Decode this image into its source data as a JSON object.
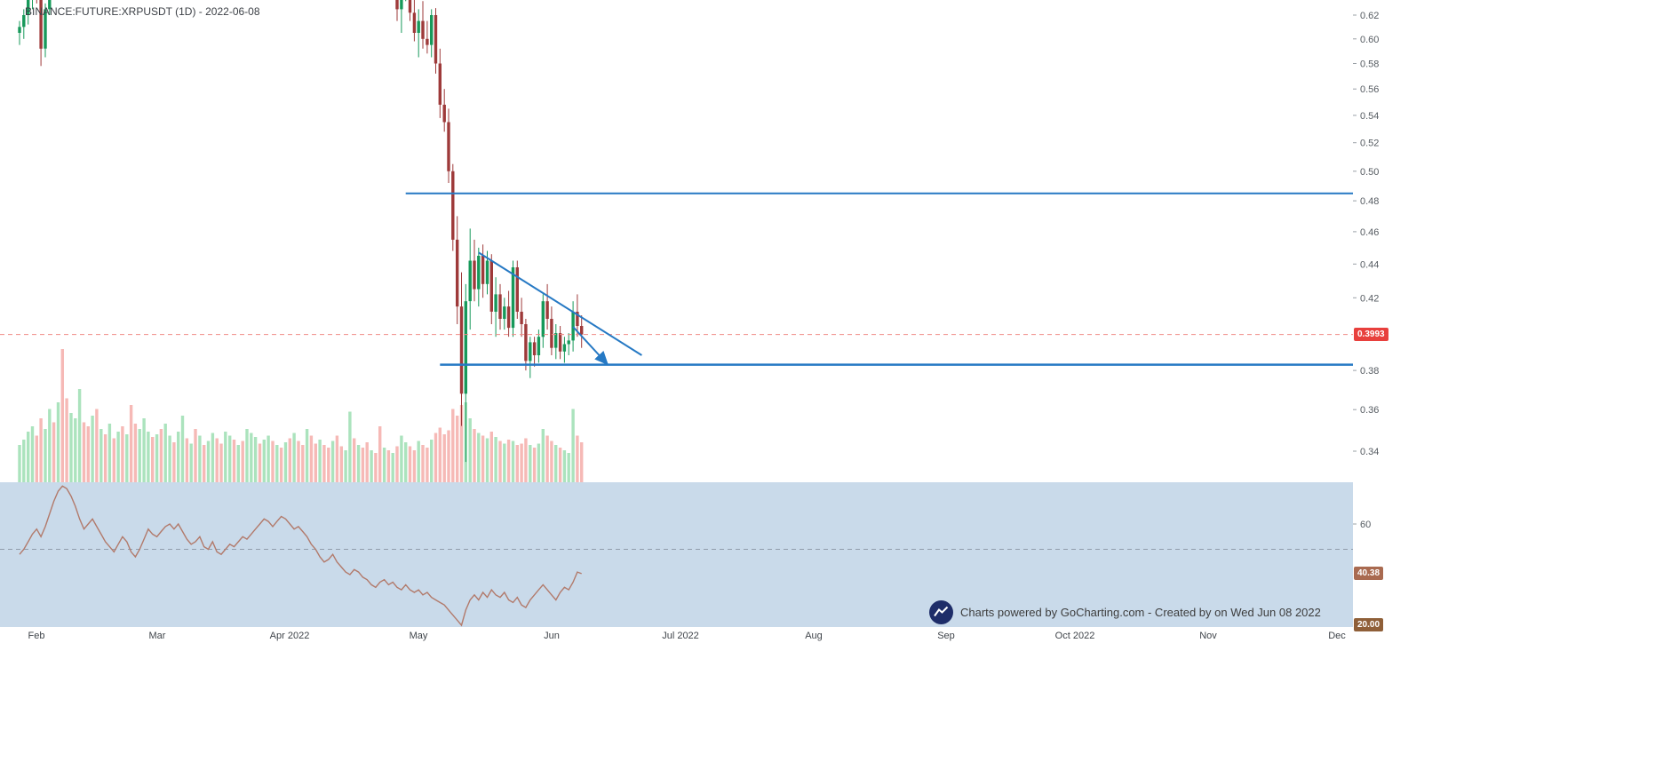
{
  "header": {
    "title": "BINANCE:FUTURE:XRPUSDT (1D) - 2022-06-08"
  },
  "footer": {
    "watermark_text": "Charts powered by GoCharting.com - Created by  on Wed Jun 08 2022"
  },
  "chart_data": {
    "type": "candlestick",
    "title": "BINANCE:FUTURE:XRPUSDT (1D) - 2022-06-08",
    "y_scale": "log",
    "price_ylim": [
      0.326,
      0.633
    ],
    "time_range": [
      "2022-01-28",
      "2022-12-04"
    ],
    "grid": "off",
    "price_ticks": [
      0.62,
      0.6,
      0.58,
      0.56,
      0.54,
      0.52,
      0.5,
      0.48,
      0.46,
      0.44,
      0.42,
      0.38,
      0.36,
      0.34
    ],
    "month_labels": [
      {
        "text": "Feb",
        "date": "2022-02-01"
      },
      {
        "text": "Mar",
        "date": "2022-03-01"
      },
      {
        "text": "Apr 2022",
        "date": "2022-04-01"
      },
      {
        "text": "May",
        "date": "2022-05-01"
      },
      {
        "text": "Jun",
        "date": "2022-06-01"
      },
      {
        "text": "Jul 2022",
        "date": "2022-07-01"
      },
      {
        "text": "Aug",
        "date": "2022-08-01"
      },
      {
        "text": "Sep",
        "date": "2022-09-01"
      },
      {
        "text": "Oct 2022",
        "date": "2022-10-01"
      },
      {
        "text": "Nov",
        "date": "2022-11-01"
      },
      {
        "text": "Dec",
        "date": "2022-12-01"
      }
    ],
    "candles_columns": [
      "date",
      "open",
      "high",
      "low",
      "close"
    ],
    "candles": [
      [
        "2022-01-28",
        0.605,
        0.615,
        0.595,
        0.61
      ],
      [
        "2022-01-29",
        0.61,
        0.625,
        0.6,
        0.62
      ],
      [
        "2022-01-30",
        0.62,
        0.64,
        0.612,
        0.635
      ],
      [
        "2022-01-31",
        0.635,
        0.655,
        0.625,
        0.65
      ],
      [
        "2022-02-01",
        0.65,
        0.662,
        0.63,
        0.638
      ],
      [
        "2022-02-02",
        0.638,
        0.645,
        0.578,
        0.592
      ],
      [
        "2022-02-03",
        0.592,
        0.63,
        0.585,
        0.625
      ],
      [
        "2022-02-04",
        0.625,
        0.668,
        0.62,
        0.66
      ],
      [
        "2022-02-05",
        0.66,
        0.672,
        0.645,
        0.652
      ],
      [
        "2022-02-06",
        0.652,
        0.68,
        0.648,
        0.675
      ],
      [
        "2022-04-26",
        0.655,
        0.66,
        0.615,
        0.625
      ],
      [
        "2022-04-27",
        0.625,
        0.652,
        0.605,
        0.645
      ],
      [
        "2022-04-28",
        0.645,
        0.662,
        0.632,
        0.655
      ],
      [
        "2022-04-29",
        0.655,
        0.665,
        0.615,
        0.622
      ],
      [
        "2022-04-30",
        0.622,
        0.635,
        0.598,
        0.605
      ],
      [
        "2022-05-01",
        0.605,
        0.625,
        0.585,
        0.615
      ],
      [
        "2022-05-02",
        0.615,
        0.632,
        0.592,
        0.6
      ],
      [
        "2022-05-03",
        0.6,
        0.615,
        0.588,
        0.595
      ],
      [
        "2022-05-04",
        0.595,
        0.625,
        0.585,
        0.62
      ],
      [
        "2022-05-05",
        0.62,
        0.626,
        0.572,
        0.58
      ],
      [
        "2022-05-06",
        0.58,
        0.592,
        0.538,
        0.548
      ],
      [
        "2022-05-07",
        0.548,
        0.56,
        0.528,
        0.535
      ],
      [
        "2022-05-08",
        0.535,
        0.545,
        0.492,
        0.5
      ],
      [
        "2022-05-09",
        0.5,
        0.505,
        0.448,
        0.455
      ],
      [
        "2022-05-10",
        0.455,
        0.47,
        0.405,
        0.415
      ],
      [
        "2022-05-11",
        0.415,
        0.435,
        0.352,
        0.368
      ],
      [
        "2022-05-12",
        0.368,
        0.428,
        0.335,
        0.418
      ],
      [
        "2022-05-13",
        0.418,
        0.462,
        0.402,
        0.442
      ],
      [
        "2022-05-14",
        0.442,
        0.455,
        0.418,
        0.425
      ],
      [
        "2022-05-15",
        0.425,
        0.45,
        0.415,
        0.445
      ],
      [
        "2022-05-16",
        0.445,
        0.452,
        0.42,
        0.428
      ],
      [
        "2022-05-17",
        0.428,
        0.448,
        0.422,
        0.442
      ],
      [
        "2022-05-18",
        0.442,
        0.446,
        0.405,
        0.412
      ],
      [
        "2022-05-19",
        0.412,
        0.432,
        0.398,
        0.422
      ],
      [
        "2022-05-20",
        0.422,
        0.428,
        0.402,
        0.408
      ],
      [
        "2022-05-21",
        0.408,
        0.42,
        0.402,
        0.415
      ],
      [
        "2022-05-22",
        0.415,
        0.424,
        0.398,
        0.403
      ],
      [
        "2022-05-23",
        0.403,
        0.442,
        0.398,
        0.438
      ],
      [
        "2022-05-24",
        0.438,
        0.442,
        0.408,
        0.412
      ],
      [
        "2022-05-25",
        0.412,
        0.42,
        0.398,
        0.405
      ],
      [
        "2022-05-26",
        0.405,
        0.408,
        0.38,
        0.385
      ],
      [
        "2022-05-27",
        0.385,
        0.398,
        0.376,
        0.395
      ],
      [
        "2022-05-28",
        0.395,
        0.398,
        0.382,
        0.388
      ],
      [
        "2022-05-29",
        0.388,
        0.402,
        0.384,
        0.398
      ],
      [
        "2022-05-30",
        0.398,
        0.422,
        0.392,
        0.418
      ],
      [
        "2022-05-31",
        0.418,
        0.428,
        0.402,
        0.408
      ],
      [
        "2022-06-01",
        0.408,
        0.415,
        0.388,
        0.392
      ],
      [
        "2022-06-02",
        0.392,
        0.405,
        0.386,
        0.4
      ],
      [
        "2022-06-03",
        0.4,
        0.404,
        0.386,
        0.39
      ],
      [
        "2022-06-04",
        0.39,
        0.398,
        0.384,
        0.394
      ],
      [
        "2022-06-05",
        0.394,
        0.4,
        0.388,
        0.396
      ],
      [
        "2022-06-06",
        0.396,
        0.418,
        0.39,
        0.412
      ],
      [
        "2022-06-07",
        0.412,
        0.422,
        0.398,
        0.404
      ],
      [
        "2022-06-08",
        0.404,
        0.41,
        0.392,
        0.3993
      ]
    ],
    "volume": {
      "start": "2022-01-28",
      "unit": "relative",
      "bars": [
        [
          28,
          "u"
        ],
        [
          32,
          "u"
        ],
        [
          38,
          "u"
        ],
        [
          42,
          "u"
        ],
        [
          35,
          "d"
        ],
        [
          48,
          "d"
        ],
        [
          40,
          "u"
        ],
        [
          55,
          "u"
        ],
        [
          45,
          "d"
        ],
        [
          60,
          "u"
        ],
        [
          100,
          "d"
        ],
        [
          63,
          "d"
        ],
        [
          52,
          "u"
        ],
        [
          48,
          "u"
        ],
        [
          70,
          "u"
        ],
        [
          45,
          "d"
        ],
        [
          42,
          "d"
        ],
        [
          50,
          "u"
        ],
        [
          55,
          "d"
        ],
        [
          40,
          "u"
        ],
        [
          36,
          "d"
        ],
        [
          44,
          "u"
        ],
        [
          33,
          "d"
        ],
        [
          38,
          "u"
        ],
        [
          42,
          "d"
        ],
        [
          36,
          "u"
        ],
        [
          58,
          "d"
        ],
        [
          44,
          "d"
        ],
        [
          40,
          "u"
        ],
        [
          48,
          "u"
        ],
        [
          38,
          "u"
        ],
        [
          34,
          "d"
        ],
        [
          36,
          "u"
        ],
        [
          40,
          "d"
        ],
        [
          44,
          "u"
        ],
        [
          35,
          "u"
        ],
        [
          30,
          "d"
        ],
        [
          38,
          "u"
        ],
        [
          50,
          "u"
        ],
        [
          33,
          "d"
        ],
        [
          29,
          "u"
        ],
        [
          40,
          "d"
        ],
        [
          35,
          "u"
        ],
        [
          28,
          "d"
        ],
        [
          31,
          "u"
        ],
        [
          37,
          "u"
        ],
        [
          33,
          "d"
        ],
        [
          29,
          "d"
        ],
        [
          38,
          "u"
        ],
        [
          35,
          "u"
        ],
        [
          32,
          "d"
        ],
        [
          28,
          "u"
        ],
        [
          31,
          "d"
        ],
        [
          40,
          "u"
        ],
        [
          37,
          "u"
        ],
        [
          34,
          "u"
        ],
        [
          29,
          "d"
        ],
        [
          32,
          "u"
        ],
        [
          35,
          "u"
        ],
        [
          31,
          "d"
        ],
        [
          28,
          "u"
        ],
        [
          26,
          "d"
        ],
        [
          30,
          "u"
        ],
        [
          33,
          "d"
        ],
        [
          37,
          "u"
        ],
        [
          31,
          "d"
        ],
        [
          28,
          "d"
        ],
        [
          40,
          "u"
        ],
        [
          35,
          "d"
        ],
        [
          29,
          "d"
        ],
        [
          32,
          "u"
        ],
        [
          28,
          "d"
        ],
        [
          26,
          "d"
        ],
        [
          31,
          "u"
        ],
        [
          35,
          "d"
        ],
        [
          27,
          "d"
        ],
        [
          24,
          "u"
        ],
        [
          53,
          "u"
        ],
        [
          33,
          "d"
        ],
        [
          28,
          "u"
        ],
        [
          26,
          "d"
        ],
        [
          30,
          "d"
        ],
        [
          24,
          "u"
        ],
        [
          22,
          "d"
        ],
        [
          42,
          "d"
        ],
        [
          26,
          "u"
        ],
        [
          24,
          "d"
        ],
        [
          22,
          "u"
        ],
        [
          27,
          "d"
        ],
        [
          35,
          "u"
        ],
        [
          30,
          "u"
        ],
        [
          27,
          "d"
        ],
        [
          24,
          "d"
        ],
        [
          31,
          "u"
        ],
        [
          28,
          "d"
        ],
        [
          26,
          "d"
        ],
        [
          32,
          "u"
        ],
        [
          37,
          "d"
        ],
        [
          41,
          "d"
        ],
        [
          36,
          "d"
        ],
        [
          39,
          "d"
        ],
        [
          55,
          "d"
        ],
        [
          50,
          "d"
        ],
        [
          58,
          "d"
        ],
        [
          60,
          "u"
        ],
        [
          48,
          "u"
        ],
        [
          40,
          "d"
        ],
        [
          37,
          "u"
        ],
        [
          35,
          "d"
        ],
        [
          33,
          "u"
        ],
        [
          38,
          "d"
        ],
        [
          34,
          "u"
        ],
        [
          31,
          "d"
        ],
        [
          29,
          "u"
        ],
        [
          32,
          "d"
        ],
        [
          31,
          "u"
        ],
        [
          28,
          "d"
        ],
        [
          29,
          "d"
        ],
        [
          33,
          "d"
        ],
        [
          28,
          "u"
        ],
        [
          26,
          "d"
        ],
        [
          29,
          "u"
        ],
        [
          40,
          "u"
        ],
        [
          35,
          "d"
        ],
        [
          31,
          "d"
        ],
        [
          28,
          "u"
        ],
        [
          26,
          "d"
        ],
        [
          24,
          "u"
        ],
        [
          22,
          "u"
        ],
        [
          55,
          "u"
        ],
        [
          35,
          "d"
        ],
        [
          30,
          "d"
        ]
      ]
    },
    "indicator": {
      "ylim": [
        18,
        78
      ],
      "midline": 50,
      "ticks": [
        {
          "value": 60,
          "label": "60"
        }
      ],
      "values_start": "2022-01-28",
      "values": [
        48,
        50,
        53,
        56,
        58,
        55,
        59,
        64,
        69,
        73,
        75,
        74,
        71,
        67,
        62,
        58,
        60,
        62,
        59,
        56,
        53,
        51,
        49,
        52,
        55,
        53,
        49,
        47,
        50,
        54,
        58,
        56,
        55,
        57,
        59,
        60,
        58,
        60,
        57,
        54,
        52,
        53,
        55,
        51,
        50,
        53,
        49,
        48,
        50,
        52,
        51,
        53,
        55,
        54,
        56,
        58,
        60,
        62,
        61,
        59,
        61,
        63,
        62,
        60,
        58,
        59,
        57,
        55,
        52,
        50,
        47,
        45,
        46,
        48,
        45,
        43,
        41,
        40,
        42,
        41,
        39,
        38,
        36,
        35,
        37,
        38,
        36,
        37,
        35,
        34,
        36,
        34,
        33,
        34,
        32,
        33,
        31,
        30,
        29,
        28,
        26,
        24,
        22,
        20,
        26,
        30,
        32,
        30,
        33,
        31,
        34,
        32,
        31,
        33,
        30,
        29,
        31,
        28,
        27,
        30,
        32,
        34,
        36,
        34,
        32,
        30,
        33,
        35,
        34,
        37,
        41,
        40.38
      ],
      "last_value": 40.38,
      "last_value_label": "40.38",
      "level": 20,
      "level_label": "20.00"
    },
    "levels": {
      "last_price": 0.3993,
      "last_price_label": "0.3993",
      "resistance": {
        "price": 0.485,
        "from": "2022-04-28"
      },
      "support": {
        "price": 0.383,
        "from": "2022-05-06"
      }
    },
    "trendline": {
      "from": {
        "date": "2022-05-15",
        "price": 0.447
      },
      "to": {
        "date": "2022-06-22",
        "price": 0.388
      }
    },
    "arrow": {
      "from": {
        "date": "2022-06-06",
        "price": 0.4035
      },
      "to": {
        "date": "2022-06-14",
        "price": 0.3833
      }
    },
    "colors": {
      "up": "#17995a",
      "down": "#9e3a3a",
      "vol_up": "#abe3bd",
      "vol_down": "#f6b9b6",
      "line_blue": "#2679c4",
      "price_line": "#f08a85",
      "price_badge": "#e8403d",
      "rsi_line": "#b27a6b",
      "rsi_badge": "#a96a50",
      "level_badge": "#8f5f38",
      "panel_bg": "#c9daea",
      "logo_bg": "#1e2d69"
    }
  }
}
